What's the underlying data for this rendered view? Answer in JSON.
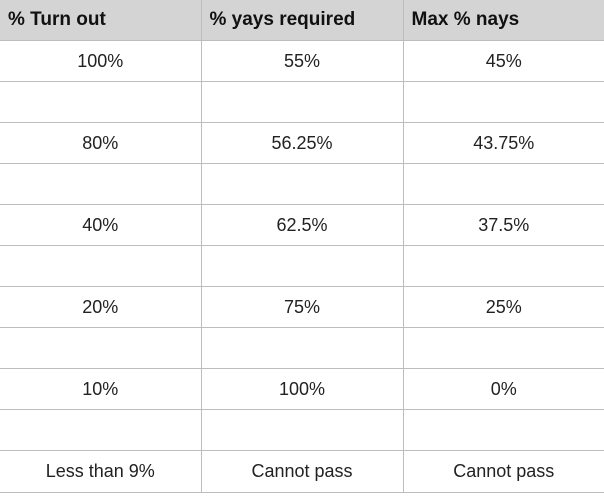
{
  "table": {
    "headers": [
      "% Turn out",
      "% yays required",
      "Max % nays"
    ],
    "rows": [
      [
        "100%",
        "55%",
        "45%"
      ],
      [
        "",
        "",
        ""
      ],
      [
        "80%",
        "56.25%",
        "43.75%"
      ],
      [
        "",
        "",
        ""
      ],
      [
        "40%",
        "62.5%",
        "37.5%"
      ],
      [
        "",
        "",
        ""
      ],
      [
        "20%",
        "75%",
        "25%"
      ],
      [
        "",
        "",
        ""
      ],
      [
        "10%",
        "100%",
        "0%"
      ],
      [
        "",
        "",
        ""
      ],
      [
        "Less than 9%",
        "Cannot pass",
        "Cannot pass"
      ]
    ]
  }
}
